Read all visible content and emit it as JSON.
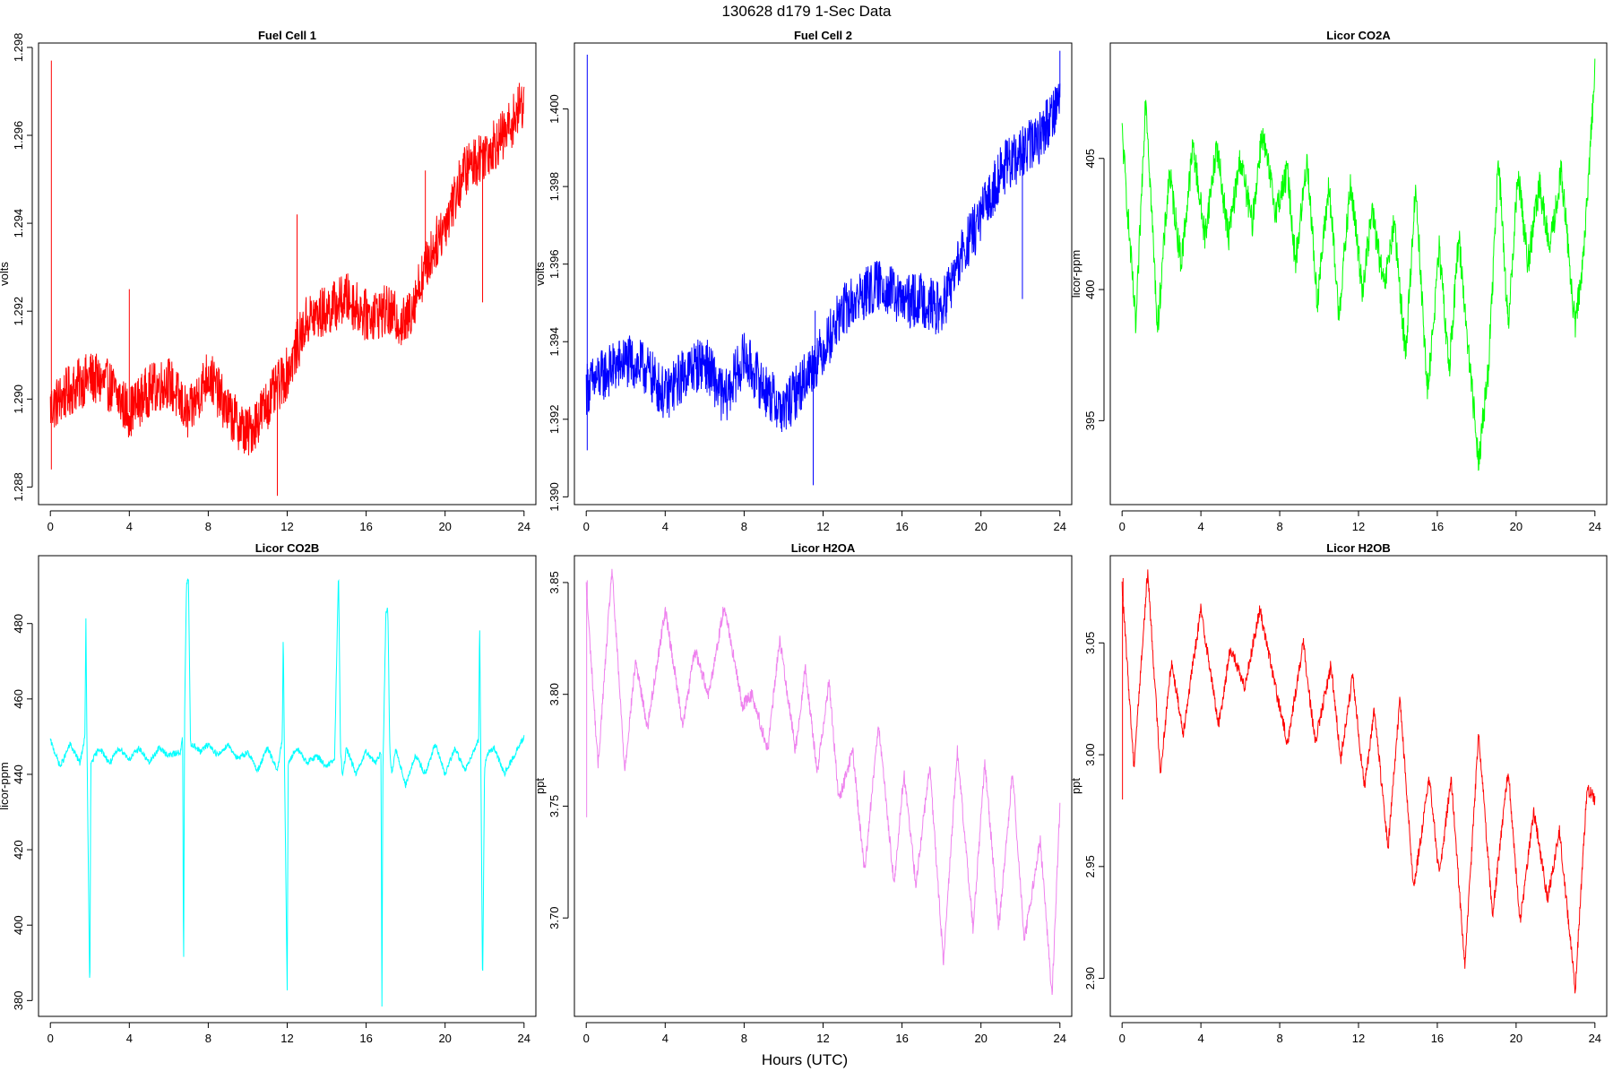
{
  "suptitle": "130628   d179   1-Sec Data",
  "x_axis_label": "Hours (UTC)",
  "chart_data": [
    {
      "type": "line",
      "title": "Fuel Cell 1",
      "xlabel": "",
      "ylabel": "volts",
      "color": "#ff0000",
      "xlim": [
        -0.6,
        24.6
      ],
      "ylim": [
        1.2876,
        1.2981
      ],
      "xticks": [
        0,
        4,
        8,
        12,
        16,
        20,
        24
      ],
      "xtick_labels": [
        "0",
        "4",
        "8",
        "12",
        "16",
        "20",
        "24"
      ],
      "yticks": [
        1.288,
        1.29,
        1.292,
        1.294,
        1.296,
        1.298
      ],
      "ytick_labels": [
        "1.288",
        "1.290",
        "1.292",
        "1.294",
        "1.296",
        "1.298"
      ],
      "noise": 0.0006,
      "series": [
        {
          "x": [
            0,
            1,
            2,
            3,
            4,
            5,
            6,
            7,
            8,
            9,
            10,
            11,
            12,
            13,
            14,
            15,
            16,
            17,
            18,
            19,
            20,
            21,
            22,
            23,
            24
          ],
          "y": [
            1.2898,
            1.2902,
            1.2905,
            1.2903,
            1.2897,
            1.2902,
            1.2904,
            1.2896,
            1.2906,
            1.2897,
            1.2892,
            1.2899,
            1.2906,
            1.2918,
            1.292,
            1.2923,
            1.2919,
            1.292,
            1.2917,
            1.293,
            1.294,
            1.2952,
            1.2956,
            1.296,
            1.2968
          ]
        }
      ],
      "spikes": [
        [
          0.05,
          1.2977
        ],
        [
          0.05,
          1.2884
        ],
        [
          11.5,
          1.2878
        ],
        [
          4.0,
          1.2925
        ],
        [
          12.5,
          1.2942
        ],
        [
          19.0,
          1.2952
        ],
        [
          21.9,
          1.2922
        ],
        [
          20.3,
          1.2947
        ]
      ]
    },
    {
      "type": "line",
      "title": "Fuel Cell 2",
      "xlabel": "",
      "ylabel": "volts",
      "color": "#0000ff",
      "xlim": [
        -0.6,
        24.6
      ],
      "ylim": [
        1.3898,
        1.4017
      ],
      "xticks": [
        0,
        4,
        8,
        12,
        16,
        20,
        24
      ],
      "xtick_labels": [
        "0",
        "4",
        "8",
        "12",
        "16",
        "20",
        "24"
      ],
      "yticks": [
        1.39,
        1.392,
        1.394,
        1.396,
        1.398,
        1.4
      ],
      "ytick_labels": [
        "1.390",
        "1.392",
        "1.394",
        "1.396",
        "1.398",
        "1.400"
      ],
      "noise": 0.0007,
      "series": [
        {
          "x": [
            0,
            1,
            2,
            3,
            4,
            5,
            6,
            7,
            8,
            9,
            10,
            11,
            12,
            13,
            14,
            15,
            16,
            17,
            18,
            19,
            20,
            21,
            22,
            23,
            24
          ],
          "y": [
            1.3928,
            1.3932,
            1.3935,
            1.3933,
            1.3926,
            1.3932,
            1.3935,
            1.3925,
            1.3936,
            1.3928,
            1.3922,
            1.393,
            1.3938,
            1.3948,
            1.3952,
            1.3955,
            1.395,
            1.3951,
            1.3948,
            1.3962,
            1.3972,
            1.3984,
            1.3988,
            1.3993,
            1.4003
          ]
        }
      ],
      "spikes": [
        [
          0.05,
          1.4014
        ],
        [
          0.05,
          1.3912
        ],
        [
          11.5,
          1.3903
        ],
        [
          11.6,
          1.3948
        ],
        [
          22.1,
          1.3951
        ],
        [
          24.0,
          1.4015
        ]
      ]
    },
    {
      "type": "line",
      "title": "Licor CO2A",
      "xlabel": "",
      "ylabel": "licor-ppm",
      "color": "#00ff00",
      "xlim": [
        -0.6,
        24.6
      ],
      "ylim": [
        391.8,
        409.4
      ],
      "xticks": [
        0,
        4,
        8,
        12,
        16,
        20,
        24
      ],
      "xtick_labels": [
        "0",
        "4",
        "8",
        "12",
        "16",
        "20",
        "24"
      ],
      "yticks": [
        395,
        400,
        405
      ],
      "ytick_labels": [
        "395",
        "400",
        "405"
      ],
      "noise": 0.6,
      "series": [
        {
          "x": [
            0,
            0.7,
            1.2,
            1.8,
            2.4,
            3.0,
            3.6,
            4.2,
            4.8,
            5.4,
            6.0,
            6.6,
            7.1,
            7.8,
            8.4,
            8.8,
            9.4,
            9.9,
            10.5,
            11.0,
            11.6,
            12.2,
            12.7,
            13.3,
            13.8,
            14.4,
            14.9,
            15.5,
            16.1,
            16.6,
            17.1,
            17.6,
            18.1,
            18.6,
            19.1,
            19.6,
            20.1,
            20.6,
            21.2,
            21.7,
            22.3,
            23.0,
            23.5,
            24.0
          ],
          "y": [
            406,
            398.5,
            407.5,
            398.5,
            404.5,
            401,
            405.5,
            402,
            405.5,
            402,
            405,
            402.5,
            406,
            403,
            404.5,
            401,
            405,
            399.5,
            404,
            399,
            404,
            400,
            403,
            400,
            402.5,
            397.5,
            404,
            396,
            401.5,
            397,
            402,
            397.5,
            393.5,
            397,
            405,
            398.5,
            404.5,
            401,
            404,
            401.5,
            404.5,
            398.5,
            402,
            408.5
          ]
        }
      ],
      "spikes": []
    },
    {
      "type": "line",
      "title": "Licor CO2B",
      "xlabel": "",
      "ylabel": "licor-ppm",
      "color": "#00ffff",
      "xlim": [
        -0.6,
        24.6
      ],
      "ylim": [
        375.8,
        498
      ],
      "xticks": [
        0,
        4,
        8,
        12,
        16,
        20,
        24
      ],
      "xtick_labels": [
        "0",
        "4",
        "8",
        "12",
        "16",
        "20",
        "24"
      ],
      "yticks": [
        380,
        400,
        420,
        440,
        460,
        480
      ],
      "ytick_labels": [
        "380",
        "400",
        "420",
        "440",
        "460",
        "480"
      ],
      "noise": 0.8,
      "series": [
        {
          "x": [
            0,
            0.5,
            1.0,
            1.5,
            1.75,
            1.8,
            1.85,
            2.0,
            2.05,
            2.5,
            3.0,
            3.5,
            4.0,
            4.5,
            5.0,
            5.5,
            6.0,
            6.6,
            6.7,
            6.75,
            6.8,
            6.9,
            7.0,
            7.1,
            7.2,
            7.6,
            8.0,
            8.5,
            9.0,
            9.5,
            10.0,
            10.5,
            11.0,
            11.5,
            11.75,
            11.8,
            11.85,
            12.0,
            12.05,
            12.5,
            13.0,
            13.5,
            14.0,
            14.4,
            14.6,
            14.7,
            14.8,
            15.0,
            15.5,
            16.0,
            16.5,
            16.75,
            16.8,
            16.85,
            17.0,
            17.1,
            17.2,
            17.3,
            17.5,
            18.0,
            18.5,
            19.0,
            19.5,
            20.0,
            20.5,
            21.0,
            21.5,
            21.7,
            21.75,
            21.8,
            21.9,
            22.0,
            22.2,
            22.5,
            23.0,
            23.5,
            24.0
          ],
          "y": [
            449,
            442,
            448,
            443,
            450,
            482,
            450,
            380,
            443,
            447,
            443,
            447,
            444,
            447,
            443,
            447,
            445,
            446,
            450,
            385,
            455,
            491,
            491,
            448,
            448,
            446,
            448,
            445,
            448,
            444,
            446,
            441,
            447,
            441,
            449,
            478,
            449,
            382,
            443,
            447,
            443,
            445,
            442,
            444,
            494,
            447,
            439,
            447,
            440,
            446,
            443,
            446,
            379,
            441,
            483,
            484,
            446,
            440,
            447,
            437,
            445,
            440,
            448,
            440,
            447,
            441,
            447,
            449,
            481,
            451,
            383,
            442,
            446,
            447,
            440,
            445,
            450
          ]
        }
      ],
      "spikes": []
    },
    {
      "type": "line",
      "title": "Licor H2OA",
      "xlabel": "",
      "ylabel": "ppt",
      "color": "#ee82ee",
      "xlim": [
        -0.6,
        24.6
      ],
      "ylim": [
        3.656,
        3.862
      ],
      "xticks": [
        0,
        4,
        8,
        12,
        16,
        20,
        24
      ],
      "xtick_labels": [
        "0",
        "4",
        "8",
        "12",
        "16",
        "20",
        "24"
      ],
      "yticks": [
        3.7,
        3.75,
        3.8,
        3.85
      ],
      "ytick_labels": [
        "3.70",
        "3.75",
        "3.80",
        "3.85"
      ],
      "noise": 0.003,
      "series": [
        {
          "x": [
            0,
            0.6,
            1.3,
            1.95,
            2.5,
            3.1,
            4.0,
            4.9,
            5.5,
            6.2,
            7.0,
            7.9,
            8.4,
            9.2,
            9.8,
            10.6,
            11.1,
            11.7,
            12.3,
            12.8,
            13.5,
            14.1,
            14.8,
            15.6,
            16.1,
            16.7,
            17.4,
            18.1,
            18.8,
            19.6,
            20.2,
            20.9,
            21.6,
            22.2,
            23.0,
            23.6,
            24.0
          ],
          "y": [
            3.848,
            3.768,
            3.856,
            3.766,
            3.815,
            3.785,
            3.838,
            3.786,
            3.82,
            3.8,
            3.84,
            3.795,
            3.8,
            3.775,
            3.825,
            3.775,
            3.812,
            3.765,
            3.806,
            3.752,
            3.775,
            3.72,
            3.787,
            3.715,
            3.765,
            3.715,
            3.768,
            3.68,
            3.775,
            3.695,
            3.77,
            3.695,
            3.765,
            3.69,
            3.735,
            3.665,
            3.75
          ]
        }
      ],
      "spikes": [
        [
          0.02,
          3.745
        ],
        [
          0.05,
          3.851
        ]
      ]
    },
    {
      "type": "line",
      "title": "Licor H2OB",
      "xlabel": "",
      "ylabel": "ppt",
      "color": "#ff0000",
      "xlim": [
        -0.6,
        24.6
      ],
      "ylim": [
        2.883,
        3.089
      ],
      "xticks": [
        0,
        4,
        8,
        12,
        16,
        20,
        24
      ],
      "xtick_labels": [
        "0",
        "4",
        "8",
        "12",
        "16",
        "20",
        "24"
      ],
      "yticks": [
        2.9,
        2.95,
        3.0,
        3.05
      ],
      "ytick_labels": [
        "2.90",
        "2.95",
        "3.00",
        "3.05"
      ],
      "noise": 0.003,
      "series": [
        {
          "x": [
            0,
            0.6,
            1.3,
            1.95,
            2.5,
            3.1,
            4.0,
            4.9,
            5.5,
            6.2,
            7.0,
            7.9,
            8.4,
            9.2,
            9.8,
            10.6,
            11.1,
            11.7,
            12.3,
            12.8,
            13.5,
            14.1,
            14.8,
            15.6,
            16.1,
            16.7,
            17.4,
            18.1,
            18.8,
            19.6,
            20.2,
            20.9,
            21.6,
            22.2,
            23.0,
            23.6,
            24.0
          ],
          "y": [
            3.075,
            2.995,
            3.082,
            2.992,
            3.042,
            3.01,
            3.065,
            3.013,
            3.048,
            3.03,
            3.065,
            3.025,
            3.005,
            3.05,
            3.005,
            3.04,
            2.998,
            3.035,
            2.985,
            3.02,
            2.958,
            3.025,
            2.94,
            2.99,
            2.945,
            2.99,
            2.905,
            3.01,
            2.928,
            2.993,
            2.925,
            2.975,
            2.935,
            2.966,
            2.895,
            2.985,
            2.98
          ]
        }
      ],
      "spikes": [
        [
          0.02,
          2.98
        ],
        [
          0.05,
          3.079
        ]
      ]
    }
  ]
}
